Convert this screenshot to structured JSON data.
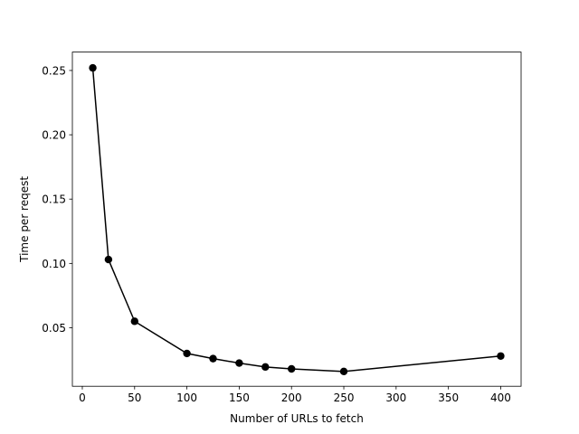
{
  "chart_data": {
    "type": "line",
    "x_label": "Number of URLs to fetch",
    "y_label": "Time per reqest",
    "x": [
      10,
      25,
      50,
      100,
      125,
      150,
      175,
      200,
      250,
      400
    ],
    "series": [
      {
        "color": "#000000",
        "values": [
          0.252,
          0.103,
          0.055,
          0.03,
          0.026,
          0.0225,
          0.0195,
          0.018,
          0.016,
          0.028
        ]
      }
    ],
    "xlim": [
      -9.5,
      419.5
    ],
    "xticks": [
      0,
      50,
      100,
      150,
      200,
      250,
      300,
      350,
      400
    ],
    "ylim": [
      0.0045,
      0.2643
    ],
    "yticks": [
      0.05,
      {
        "value": 0.1,
        "label": "0.10"
      },
      0.15,
      {
        "value": 0.2,
        "label": "0.20"
      },
      0.25
    ],
    "grid": false,
    "markers": true
  }
}
